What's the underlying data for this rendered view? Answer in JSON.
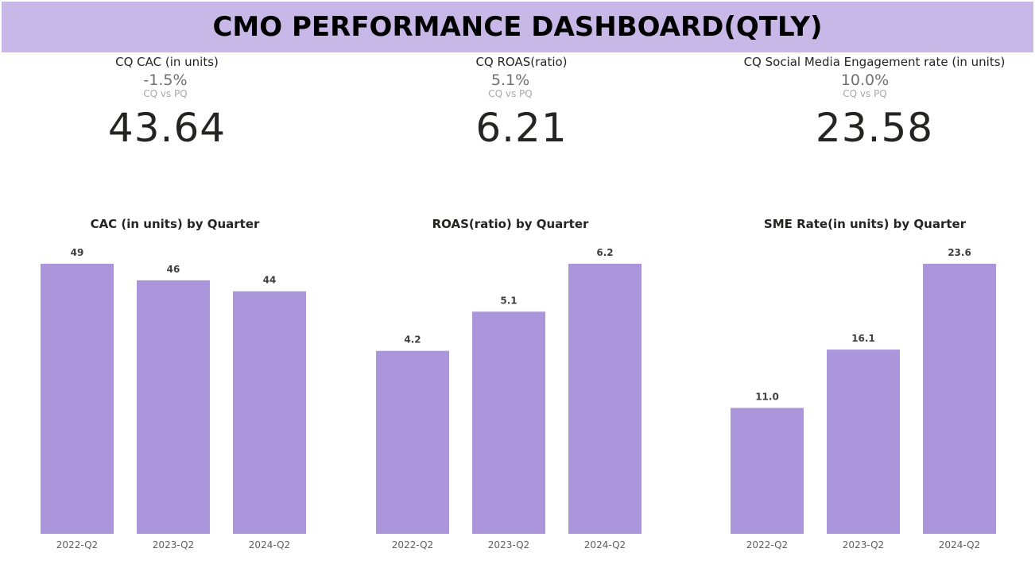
{
  "title": "CMO PERFORMANCE DASHBOARD(QTLY)",
  "kpis": [
    {
      "label": "CQ CAC (in units)",
      "change": "-1.5%",
      "compare": "CQ vs PQ",
      "value": "43.64"
    },
    {
      "label": "CQ ROAS(ratio)",
      "change": "5.1%",
      "compare": "CQ vs PQ",
      "value": "6.21"
    },
    {
      "label": "CQ Social Media Engagement rate (in units)",
      "change": "10.0%",
      "compare": "CQ vs PQ",
      "value": "23.58"
    }
  ],
  "colors": {
    "title_bg": "#c8b8e8",
    "bar": "#ab96dc"
  },
  "chart_data": [
    {
      "type": "bar",
      "title": "CAC (in units) by Quarter",
      "categories": [
        "2022-Q2",
        "2023-Q2",
        "2024-Q2"
      ],
      "values": [
        49,
        46,
        44
      ],
      "labels": [
        "49",
        "46",
        "44"
      ],
      "xlabel": "",
      "ylabel": "",
      "ylim": [
        0,
        49
      ],
      "grid": false
    },
    {
      "type": "bar",
      "title": "ROAS(ratio) by Quarter",
      "categories": [
        "2022-Q2",
        "2023-Q2",
        "2024-Q2"
      ],
      "values": [
        4.2,
        5.1,
        6.2
      ],
      "labels": [
        "4.2",
        "5.1",
        "6.2"
      ],
      "xlabel": "",
      "ylabel": "",
      "ylim": [
        0,
        6.2
      ],
      "grid": false
    },
    {
      "type": "bar",
      "title": "SME Rate(in units) by Quarter",
      "categories": [
        "2022-Q2",
        "2023-Q2",
        "2024-Q2"
      ],
      "values": [
        11.0,
        16.1,
        23.6
      ],
      "labels": [
        "11.0",
        "16.1",
        "23.6"
      ],
      "xlabel": "",
      "ylabel": "",
      "ylim": [
        0,
        23.6
      ],
      "grid": false
    }
  ]
}
